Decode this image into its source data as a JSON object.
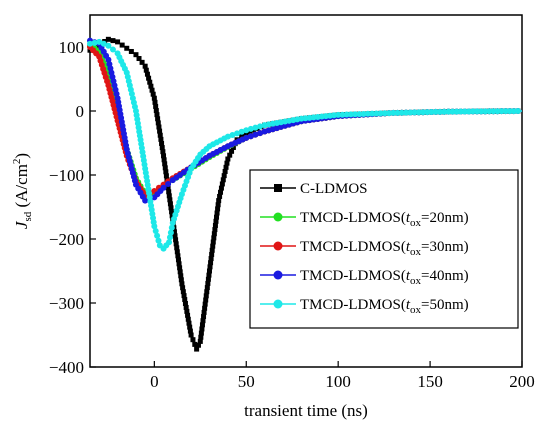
{
  "chart_data": {
    "type": "line",
    "xlabel": "transient time (ns)",
    "ylabel": {
      "main": "J",
      "sub": "sd",
      "unit_open": " (A/cm",
      "unit_sup": "2",
      "unit_close": ")"
    },
    "xlim": [
      -35,
      200
    ],
    "ylim": [
      -400,
      150
    ],
    "xticks": [
      0,
      50,
      100,
      150,
      200
    ],
    "yticks": [
      100,
      0,
      -100,
      -200,
      -300,
      -400
    ],
    "grid": false,
    "legend_position": "center-right",
    "series": [
      {
        "name": "C-LDMOS",
        "legend": {
          "pre": "C-LDMOS",
          "sub": "",
          "post": ""
        },
        "color": "#000000",
        "marker": "square",
        "x": [
          -35,
          -25,
          -20,
          -15,
          -10,
          -5,
          0,
          5,
          10,
          15,
          20,
          23,
          25,
          30,
          35,
          40,
          45,
          50,
          60,
          80,
          100,
          130,
          160,
          200
        ],
        "y": [
          95,
          112,
          108,
          98,
          88,
          70,
          20,
          -70,
          -170,
          -270,
          -350,
          -372,
          -360,
          -250,
          -140,
          -75,
          -45,
          -35,
          -22,
          -12,
          -6,
          -3,
          -1,
          0
        ]
      },
      {
        "name": "TMCD-LDMOS(tox=20nm)",
        "legend": {
          "pre": "TMCD-LDMOS(",
          "sub": "ox",
          "post": "=20nm)"
        },
        "color": "#22e022",
        "marker": "circle",
        "x": [
          -35,
          -30,
          -25,
          -20,
          -15,
          -10,
          -5,
          0,
          5,
          10,
          20,
          30,
          40,
          50,
          60,
          80,
          100,
          130,
          160,
          200
        ],
        "y": [
          102,
          95,
          55,
          0,
          -60,
          -105,
          -130,
          -128,
          -118,
          -108,
          -90,
          -72,
          -56,
          -42,
          -32,
          -16,
          -8,
          -3,
          -1,
          0
        ]
      },
      {
        "name": "TMCD-LDMOS(tox=30nm)",
        "legend": {
          "pre": "TMCD-LDMOS(",
          "sub": "ox",
          "post": "=30nm)"
        },
        "color": "#e01515",
        "marker": "circle",
        "x": [
          -35,
          -30,
          -25,
          -20,
          -15,
          -10,
          -5,
          0,
          5,
          10,
          20,
          30,
          40,
          50,
          60,
          80,
          100,
          130,
          160,
          200
        ],
        "y": [
          100,
          85,
          40,
          -15,
          -70,
          -110,
          -132,
          -125,
          -115,
          -105,
          -88,
          -70,
          -55,
          -42,
          -32,
          -16,
          -8,
          -3,
          -1,
          0
        ]
      },
      {
        "name": "TMCD-LDMOS(tox=40nm)",
        "legend": {
          "pre": "TMCD-LDMOS(",
          "sub": "ox",
          "post": "=40nm)"
        },
        "color": "#1a1ae0",
        "marker": "circle",
        "x": [
          -35,
          -30,
          -25,
          -20,
          -15,
          -10,
          -5,
          0,
          5,
          10,
          20,
          30,
          40,
          50,
          60,
          80,
          100,
          130,
          160,
          200
        ],
        "y": [
          110,
          105,
          80,
          20,
          -60,
          -115,
          -140,
          -135,
          -120,
          -108,
          -88,
          -70,
          -55,
          -42,
          -32,
          -16,
          -8,
          -3,
          -1,
          0
        ]
      },
      {
        "name": "TMCD-LDMOS(tox=50nm)",
        "legend": {
          "pre": "TMCD-LDMOS(",
          "sub": "ox",
          "post": "=50nm)"
        },
        "color": "#1ee8e8",
        "marker": "circle",
        "x": [
          -35,
          -30,
          -25,
          -20,
          -15,
          -10,
          -5,
          0,
          3,
          5,
          8,
          10,
          15,
          20,
          25,
          30,
          40,
          50,
          60,
          80,
          100,
          130,
          160,
          200
        ],
        "y": [
          105,
          108,
          102,
          90,
          60,
          0,
          -90,
          -180,
          -210,
          -215,
          -205,
          -175,
          -130,
          -90,
          -68,
          -55,
          -40,
          -30,
          -22,
          -12,
          -6,
          -3,
          -1,
          0
        ]
      }
    ]
  }
}
